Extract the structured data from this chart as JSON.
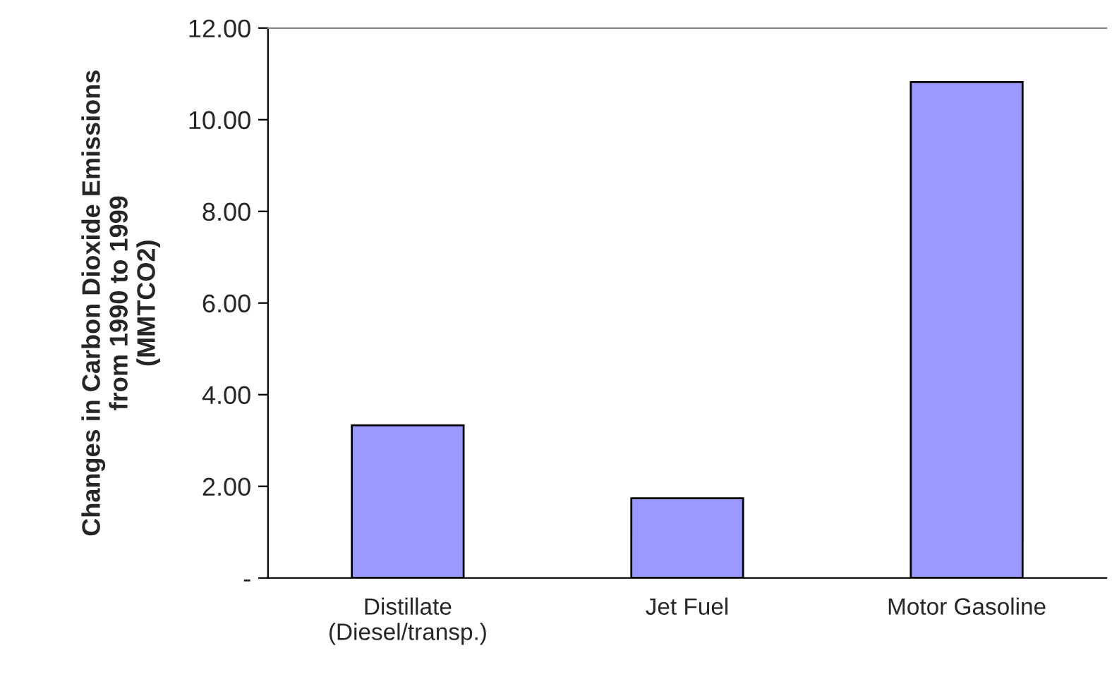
{
  "chart_data": {
    "type": "bar",
    "ylabel": "Changes in Carbon Dioxide Emissions\nfrom 1990 to 1999\n(MMTCO2)",
    "categories": [
      "Distillate\n(Diesel/transp.)",
      "Jet Fuel",
      "Motor Gasoline"
    ],
    "values": [
      3.33,
      1.74,
      10.82
    ],
    "color": "#9999ff",
    "ylim": [
      0,
      12
    ],
    "yticks": [
      {
        "value": 0,
        "label": "-"
      },
      {
        "value": 2,
        "label": "2.00"
      },
      {
        "value": 4,
        "label": "4.00"
      },
      {
        "value": 6,
        "label": "6.00"
      },
      {
        "value": 8,
        "label": "8.00"
      },
      {
        "value": 10,
        "label": "10.00"
      },
      {
        "value": 12,
        "label": "12.00"
      }
    ],
    "legend": false
  }
}
